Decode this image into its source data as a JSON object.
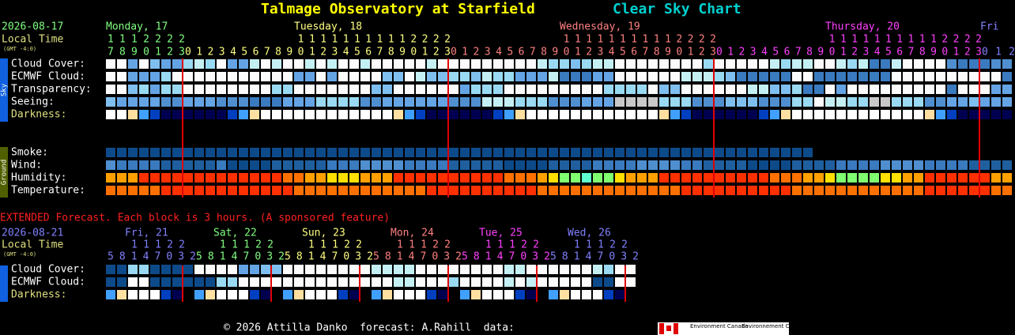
{
  "header": {
    "title": "Talmage Observatory at Starfield",
    "subtitle": "Clear Sky Chart"
  },
  "main": {
    "date": "2026-08-17",
    "time_label": "Local Time",
    "timezone": "(GMT -4:0)",
    "days": [
      {
        "label": "Monday, 17",
        "tens": "1112222",
        "units": "7890123",
        "color": "#80ff80"
      },
      {
        "label": "Tuesday, 18",
        "tens": "          11111111112222",
        "units": "012345678901234567890123",
        "color": "#ffff80"
      },
      {
        "label": "Wednesday, 19",
        "tens": "          11111111112222",
        "units": "012345678901234567890123",
        "color": "#ff8080"
      },
      {
        "label": "Thursday, 20",
        "tens": "          11111111112222",
        "units": "012345678901234567890123",
        "color": "#ff40ff"
      },
      {
        "label": "Fri",
        "units": "012",
        "color": "#8080ff"
      }
    ],
    "sky_label": "Sky",
    "ground_label": "Ground",
    "sky_rows": [
      "Cloud Cover:",
      "ECMWF Cloud:",
      "Transparency:",
      "Seeing:",
      "Darkness:"
    ],
    "ground_rows": [
      "Smoke:",
      "Wind:",
      "Humidity:",
      "Temperature:"
    ]
  },
  "extended": {
    "note": "EXTENDED Forecast. Each block is 3 hours. (A sponsored feature)",
    "date": "2026-08-21",
    "time_label": "Local Time",
    "timezone": "(GMT -4:0)",
    "days": [
      {
        "label": "Fri, 21",
        "tens": "  11122",
        "units": "58147032",
        "color": "#8080ff"
      },
      {
        "label": "Sat, 22",
        "tens": "  11122",
        "units": "58147032",
        "color": "#80ff80"
      },
      {
        "label": "Sun, 23",
        "tens": "  11122",
        "units": "58147032",
        "color": "#ffff80"
      },
      {
        "label": "Mon, 24",
        "tens": "  11122",
        "units": "58147032",
        "color": "#ff8080"
      },
      {
        "label": "Tue, 25",
        "tens": "  11122",
        "units": "58147032",
        "color": "#ff40ff"
      },
      {
        "label": "Wed, 26",
        "tens": "  11122",
        "units": "58147032",
        "color": "#8080ff"
      }
    ],
    "rows": [
      "Cloud Cover:",
      "ECMWF Cloud:",
      "Darkness:"
    ]
  },
  "footer": {
    "credit": "© 2026 Attilla Danko  forecast: A.Rahill  data:",
    "logo_en": "Environment Canada",
    "logo_fr": "Environnement Canada"
  }
}
